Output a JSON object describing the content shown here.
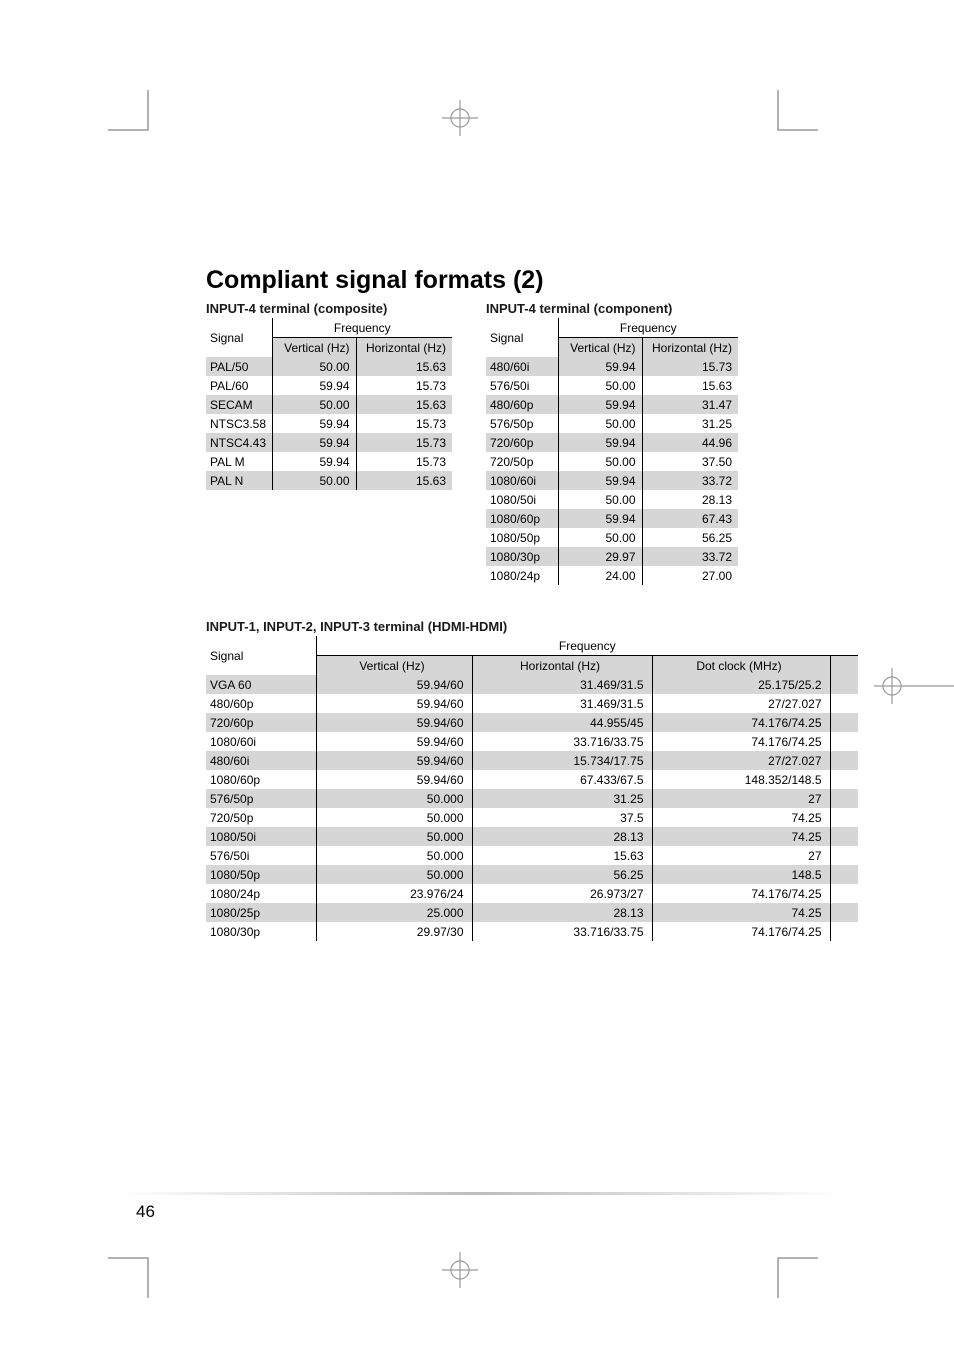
{
  "page": {
    "title": "Compliant signal formats (2)",
    "number": "46"
  },
  "crop_color": "#9a9a9a",
  "tables": {
    "composite": {
      "title": "INPUT-4 terminal (composite)",
      "signal_label": "Signal",
      "freq_label": "Frequency",
      "v_label": "Vertical (Hz)",
      "h_label": "Horizontal (Hz)",
      "rows": [
        {
          "s": "PAL/50",
          "v": "50.00",
          "h": "15.63"
        },
        {
          "s": "PAL/60",
          "v": "59.94",
          "h": "15.73"
        },
        {
          "s": "SECAM",
          "v": "50.00",
          "h": "15.63"
        },
        {
          "s": "NTSC3.58",
          "v": "59.94",
          "h": "15.73"
        },
        {
          "s": "NTSC4.43",
          "v": "59.94",
          "h": "15.73"
        },
        {
          "s": "PAL M",
          "v": "59.94",
          "h": "15.73"
        },
        {
          "s": "PAL N",
          "v": "50.00",
          "h": "15.63"
        }
      ]
    },
    "component": {
      "title": "INPUT-4 terminal (component)",
      "signal_label": "Signal",
      "freq_label": "Frequency",
      "v_label": "Vertical (Hz)",
      "h_label": "Horizontal (Hz)",
      "rows": [
        {
          "s": "480/60i",
          "v": "59.94",
          "h": "15.73"
        },
        {
          "s": "576/50i",
          "v": "50.00",
          "h": "15.63"
        },
        {
          "s": "480/60p",
          "v": "59.94",
          "h": "31.47"
        },
        {
          "s": "576/50p",
          "v": "50.00",
          "h": "31.25"
        },
        {
          "s": "720/60p",
          "v": "59.94",
          "h": "44.96"
        },
        {
          "s": "720/50p",
          "v": "50.00",
          "h": "37.50"
        },
        {
          "s": "1080/60i",
          "v": "59.94",
          "h": "33.72"
        },
        {
          "s": "1080/50i",
          "v": "50.00",
          "h": "28.13"
        },
        {
          "s": "1080/60p",
          "v": "59.94",
          "h": "67.43"
        },
        {
          "s": "1080/50p",
          "v": "50.00",
          "h": "56.25"
        },
        {
          "s": "1080/30p",
          "v": "29.97",
          "h": "33.72"
        },
        {
          "s": "1080/24p",
          "v": "24.00",
          "h": "27.00"
        }
      ]
    },
    "hdmi": {
      "title": "INPUT-1, INPUT-2, INPUT-3 terminal (HDMI-HDMI)",
      "signal_label": "Signal",
      "freq_label": "Frequency",
      "v_label": "Vertical (Hz)",
      "h_label": "Horizontal (Hz)",
      "d_label": "Dot clock (MHz)",
      "rows": [
        {
          "s": "VGA 60",
          "v": "59.94/60",
          "h": "31.469/31.5",
          "d": "25.175/25.2"
        },
        {
          "s": "480/60p",
          "v": "59.94/60",
          "h": "31.469/31.5",
          "d": "27/27.027"
        },
        {
          "s": "720/60p",
          "v": "59.94/60",
          "h": "44.955/45",
          "d": "74.176/74.25"
        },
        {
          "s": "1080/60i",
          "v": "59.94/60",
          "h": "33.716/33.75",
          "d": "74.176/74.25"
        },
        {
          "s": "480/60i",
          "v": "59.94/60",
          "h": "15.734/17.75",
          "d": "27/27.027"
        },
        {
          "s": "1080/60p",
          "v": "59.94/60",
          "h": "67.433/67.5",
          "d": "148.352/148.5"
        },
        {
          "s": "576/50p",
          "v": "50.000",
          "h": "31.25",
          "d": "27"
        },
        {
          "s": "720/50p",
          "v": "50.000",
          "h": "37.5",
          "d": "74.25"
        },
        {
          "s": "1080/50i",
          "v": "50.000",
          "h": "28.13",
          "d": "74.25"
        },
        {
          "s": "576/50i",
          "v": "50.000",
          "h": "15.63",
          "d": "27"
        },
        {
          "s": "1080/50p",
          "v": "50.000",
          "h": "56.25",
          "d": "148.5"
        },
        {
          "s": "1080/24p",
          "v": "23.976/24",
          "h": "26.973/27",
          "d": "74.176/74.25"
        },
        {
          "s": "1080/25p",
          "v": "25.000",
          "h": "28.13",
          "d": "74.25"
        },
        {
          "s": "1080/30p",
          "v": "29.97/30",
          "h": "33.716/33.75",
          "d": "74.176/74.25"
        }
      ]
    }
  },
  "style": {
    "zebra_bg": "#d6d6d6",
    "text_color": "#000000",
    "title_size": 25,
    "section_title_size": 13,
    "body_font_size": 12,
    "page_bg": "#ffffff"
  }
}
